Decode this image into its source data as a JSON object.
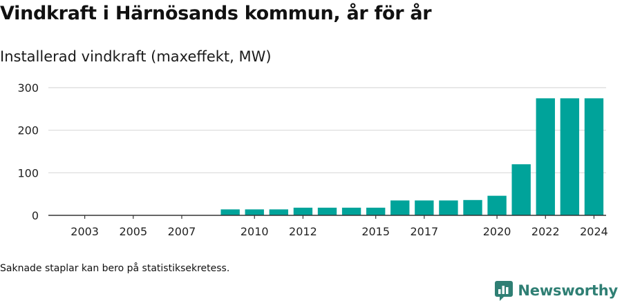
{
  "header": {
    "title": "Vindkraft i Härnösands kommun, år för år",
    "subtitle": "Installerad vindkraft (maxeffekt, MW)"
  },
  "footer": {
    "note": "Saknade staplar kan bero på statistiksekretess.",
    "brand": "Newsworthy"
  },
  "colors": {
    "bar": "#00a39a",
    "grid": "#d9d9d9",
    "axis": "#333333",
    "brand": "#2f7f74"
  },
  "chart_data": {
    "type": "bar",
    "title": "Vindkraft i Härnösands kommun, år för år",
    "ylabel": "Installerad vindkraft (maxeffekt, MW)",
    "categories": [
      "2002",
      "2003",
      "2004",
      "2005",
      "2006",
      "2007",
      "2008",
      "2009",
      "2010",
      "2011",
      "2012",
      "2013",
      "2014",
      "2015",
      "2016",
      "2017",
      "2018",
      "2019",
      "2020",
      "2021",
      "2022",
      "2023",
      "2024"
    ],
    "values": [
      null,
      null,
      null,
      null,
      null,
      null,
      null,
      14,
      14,
      14,
      18,
      18,
      18,
      18,
      35,
      35,
      35,
      36,
      46,
      120,
      275,
      275,
      275
    ],
    "x_tick_labels": [
      "2003",
      "2005",
      "2007",
      "2010",
      "2012",
      "2015",
      "2017",
      "2020",
      "2022",
      "2024"
    ],
    "y_ticks": [
      0,
      100,
      200,
      300
    ],
    "ylim": [
      0,
      300
    ],
    "grid": true,
    "legend": "none"
  }
}
